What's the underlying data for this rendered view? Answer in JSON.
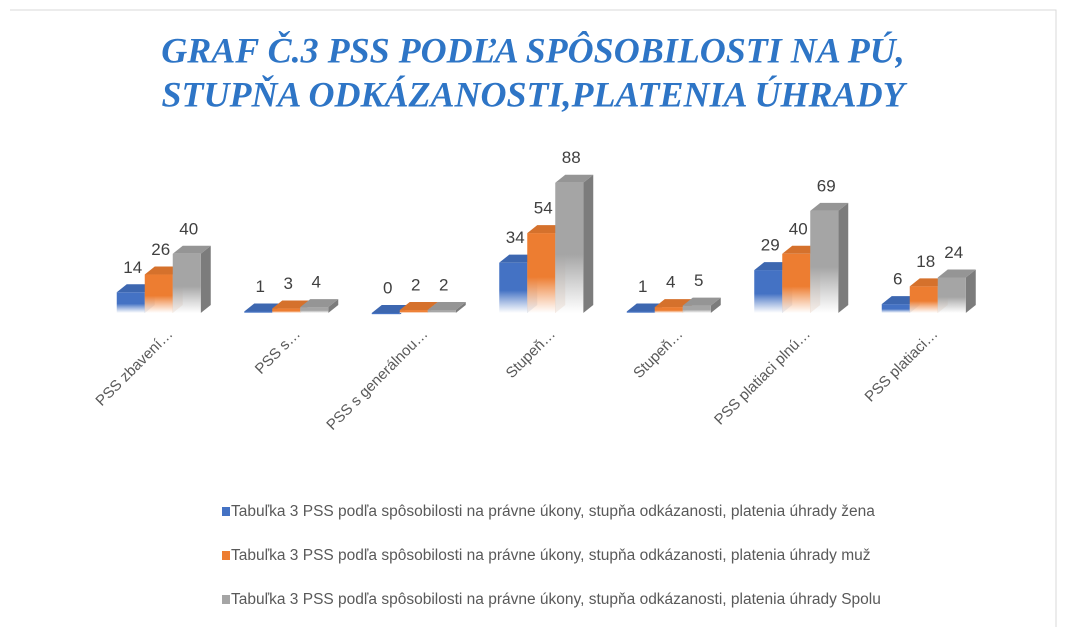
{
  "chart_data": {
    "type": "bar3d",
    "title": [
      "GRAF Č.3 PSS PODĽA SPÔSOBILOSTI NA PÚ,",
      "STUPŇA ODKÁZANOSTI,PLATENIA ÚHRADY"
    ],
    "categories": [
      "PSS zbavení…",
      "PSS s…",
      "PSS s generálnou…",
      "Stupeň…",
      "Stupeň…",
      "PSS platiaci plnú…",
      "PSS platiaci…"
    ],
    "series": [
      {
        "name": "Tabuľka 3 PSS podľa spôsobilosti na právne úkony, stupňa odkázanosti,  platenia úhrady žena",
        "color": "#4472c4",
        "values": [
          14,
          1,
          0,
          34,
          1,
          29,
          6
        ]
      },
      {
        "name": "Tabuľka 3 PSS podľa spôsobilosti na právne úkony, stupňa odkázanosti,  platenia úhrady muž",
        "color": "#ed7d31",
        "values": [
          26,
          3,
          2,
          54,
          4,
          40,
          18
        ]
      },
      {
        "name": "Tabuľka 3 PSS podľa spôsobilosti na právne úkony, stupňa odkázanosti,  platenia úhrady Spolu",
        "color": "#a5a5a5",
        "values": [
          40,
          4,
          2,
          88,
          5,
          69,
          24
        ]
      }
    ],
    "ylim": [
      0,
      100
    ],
    "legend": "bottom"
  }
}
